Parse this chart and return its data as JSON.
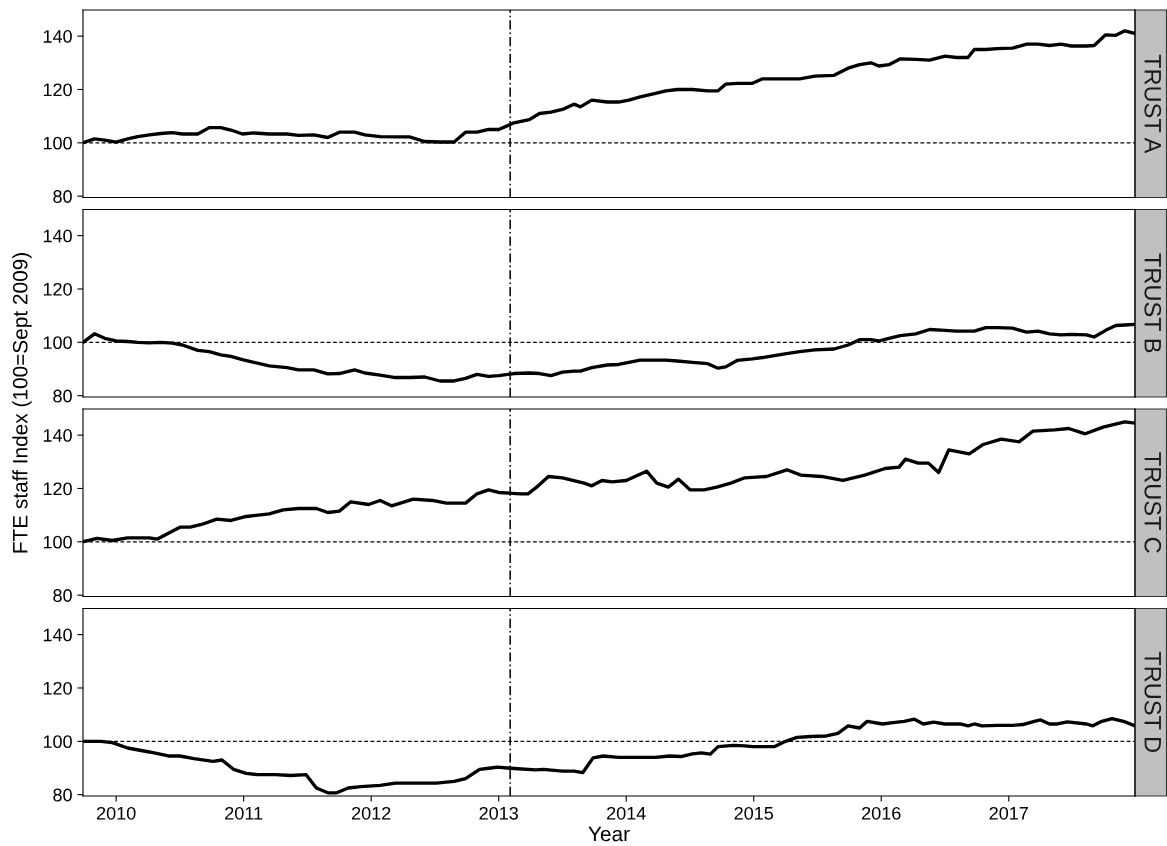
{
  "chart_data": [
    {
      "type": "line",
      "title": "TRUST A",
      "xlim": [
        2009.74,
        2017.99
      ],
      "ylim": [
        79.5,
        149.8
      ],
      "yticks": [
        80,
        100,
        120,
        140
      ],
      "xticks": [
        2010,
        2011,
        2012,
        2013,
        2014,
        2015,
        2016,
        2017
      ],
      "tick_labels": "y",
      "grid": false,
      "legend": false,
      "x": [
        2009.74,
        2009.83,
        2009.91,
        2010.0,
        2010.09,
        2010.17,
        2010.26,
        2010.35,
        2010.44,
        2010.52,
        2010.64,
        2010.73,
        2010.82,
        2010.9,
        2010.99,
        2011.08,
        2011.2,
        2011.34,
        2011.43,
        2011.55,
        2011.66,
        2011.75,
        2011.87,
        2011.95,
        2012.07,
        2012.19,
        2012.3,
        2012.42,
        2012.54,
        2012.65,
        2012.74,
        2012.83,
        2012.92,
        2013.0,
        2013.12,
        2013.24,
        2013.32,
        2013.41,
        2013.5,
        2013.59,
        2013.64,
        2013.73,
        2013.85,
        2013.94,
        2014.02,
        2014.11,
        2014.23,
        2014.31,
        2014.4,
        2014.52,
        2014.64,
        2014.72,
        2014.78,
        2014.87,
        2014.99,
        2015.07,
        2015.22,
        2015.36,
        2015.48,
        2015.63,
        2015.74,
        2015.83,
        2015.92,
        2015.98,
        2016.06,
        2016.15,
        2016.27,
        2016.38,
        2016.5,
        2016.59,
        2016.68,
        2016.73,
        2016.82,
        2016.91,
        2017.03,
        2017.14,
        2017.23,
        2017.32,
        2017.41,
        2017.49,
        2017.61,
        2017.67,
        2017.76,
        2017.84,
        2017.91,
        2017.99
      ],
      "series": [
        {
          "color": "#000000",
          "values": [
            100,
            101.5,
            101,
            100.3,
            101.5,
            102.3,
            103,
            103.5,
            103.8,
            103.3,
            103.3,
            105.7,
            105.7,
            104.8,
            103.3,
            103.7,
            103.3,
            103.3,
            102.8,
            103,
            102,
            104,
            104,
            103,
            102.3,
            102.2,
            102.2,
            100.5,
            100.3,
            100.3,
            104,
            104,
            105,
            105,
            107.5,
            108.7,
            111,
            111.5,
            112.5,
            114.5,
            113.5,
            116,
            115.3,
            115.3,
            116,
            117.2,
            118.5,
            119.5,
            120,
            120,
            119.5,
            119.5,
            122,
            122.3,
            122.3,
            124,
            124,
            124,
            125,
            125.3,
            128,
            129.3,
            130,
            128.8,
            129.3,
            131.5,
            131.3,
            131,
            132.5,
            132,
            132,
            135,
            135,
            135.3,
            135.5,
            137,
            137,
            136.5,
            137,
            136.3,
            136.3,
            136.5,
            140.5,
            140.3,
            142,
            141
          ]
        }
      ],
      "ref_lines": [
        {
          "axis": "y",
          "value": 100,
          "line_style": "dotted"
        },
        {
          "axis": "x",
          "value": 2013.09,
          "line_style": "dashdot"
        }
      ]
    },
    {
      "type": "line",
      "title": "TRUST B",
      "ylabel": "FTE staff Index (100=Sept 2009)",
      "xlim": [
        2009.74,
        2017.99
      ],
      "ylim": [
        79.5,
        149.8
      ],
      "yticks": [
        80,
        100,
        120,
        140
      ],
      "xticks": [
        2010,
        2011,
        2012,
        2013,
        2014,
        2015,
        2016,
        2017
      ],
      "tick_labels": "y",
      "grid": false,
      "legend": false,
      "x": [
        2009.74,
        2009.83,
        2009.91,
        2010.0,
        2010.09,
        2010.17,
        2010.26,
        2010.35,
        2010.44,
        2010.52,
        2010.64,
        2010.73,
        2010.82,
        2010.9,
        2010.99,
        2011.08,
        2011.2,
        2011.34,
        2011.43,
        2011.55,
        2011.66,
        2011.75,
        2011.87,
        2011.95,
        2012.07,
        2012.19,
        2012.3,
        2012.42,
        2012.54,
        2012.65,
        2012.74,
        2012.83,
        2012.92,
        2013.0,
        2013.12,
        2013.24,
        2013.32,
        2013.41,
        2013.5,
        2013.59,
        2013.64,
        2013.73,
        2013.85,
        2013.94,
        2014.02,
        2014.11,
        2014.23,
        2014.31,
        2014.4,
        2014.52,
        2014.64,
        2014.72,
        2014.78,
        2014.87,
        2014.99,
        2015.07,
        2015.22,
        2015.36,
        2015.48,
        2015.63,
        2015.74,
        2015.83,
        2015.92,
        2015.98,
        2016.06,
        2016.15,
        2016.27,
        2016.38,
        2016.5,
        2016.59,
        2016.68,
        2016.73,
        2016.82,
        2016.91,
        2017.03,
        2017.14,
        2017.23,
        2017.32,
        2017.41,
        2017.49,
        2017.61,
        2017.67,
        2017.76,
        2017.84,
        2017.91,
        2017.99
      ],
      "series": [
        {
          "color": "#000000",
          "values": [
            100,
            103.2,
            101.5,
            100.5,
            100.3,
            100,
            99.8,
            100,
            99.7,
            99,
            97,
            96.5,
            95.3,
            94.7,
            93.5,
            92.5,
            91.2,
            90.5,
            89.7,
            89.7,
            88.2,
            88.3,
            89.7,
            88.5,
            87.7,
            86.8,
            86.8,
            87,
            85.5,
            85.5,
            86.5,
            88,
            87.2,
            87.5,
            88.3,
            88.5,
            88.3,
            87.5,
            88.8,
            89.2,
            89.2,
            90.5,
            91.5,
            91.7,
            92.5,
            93.3,
            93.3,
            93.3,
            93,
            92.5,
            92,
            90.3,
            90.8,
            93.2,
            93.8,
            94.3,
            95.5,
            96.5,
            97.2,
            97.5,
            99,
            101,
            101,
            100.5,
            101.5,
            102.5,
            103.2,
            104.8,
            104.5,
            104.2,
            104.2,
            104.2,
            105.5,
            105.5,
            105.3,
            103.8,
            104.2,
            103.2,
            102.8,
            103,
            102.8,
            102,
            104.5,
            106.3,
            106.5,
            106.7
          ]
        }
      ],
      "ref_lines": [
        {
          "axis": "y",
          "value": 100,
          "line_style": "dotted"
        },
        {
          "axis": "x",
          "value": 2013.09,
          "line_style": "dashdot"
        }
      ]
    },
    {
      "type": "line",
      "title": "TRUST C",
      "xlim": [
        2009.74,
        2017.99
      ],
      "ylim": [
        79.5,
        149.8
      ],
      "yticks": [
        80,
        100,
        120,
        140
      ],
      "xticks": [
        2010,
        2011,
        2012,
        2013,
        2014,
        2015,
        2016,
        2017
      ],
      "tick_labels": "y",
      "grid": false,
      "legend": false,
      "x": [
        2009.74,
        2009.85,
        2009.97,
        2010.09,
        2010.26,
        2010.32,
        2010.44,
        2010.5,
        2010.58,
        2010.67,
        2010.79,
        2010.9,
        2011.02,
        2011.2,
        2011.31,
        2011.43,
        2011.57,
        2011.66,
        2011.75,
        2011.84,
        2011.98,
        2012.07,
        2012.16,
        2012.33,
        2012.48,
        2012.59,
        2012.74,
        2012.83,
        2012.92,
        2013.0,
        2013.17,
        2013.23,
        2013.31,
        2013.39,
        2013.5,
        2013.67,
        2013.73,
        2013.81,
        2013.89,
        2014.0,
        2014.16,
        2014.24,
        2014.33,
        2014.41,
        2014.5,
        2014.61,
        2014.71,
        2014.82,
        2014.93,
        2015.1,
        2015.26,
        2015.37,
        2015.53,
        2015.7,
        2015.87,
        2016.03,
        2016.14,
        2016.19,
        2016.29,
        2016.37,
        2016.45,
        2016.53,
        2016.69,
        2016.8,
        2016.94,
        2017.08,
        2017.19,
        2017.36,
        2017.47,
        2017.6,
        2017.74,
        2017.91,
        2017.99
      ],
      "series": [
        {
          "color": "#000000",
          "values": [
            100,
            101.3,
            100.5,
            101.5,
            101.5,
            101,
            104,
            105.5,
            105.5,
            106.5,
            108.5,
            108,
            109.5,
            110.5,
            112,
            112.5,
            112.5,
            111,
            111.5,
            115,
            114,
            115.5,
            113.5,
            116,
            115.5,
            114.5,
            114.5,
            118,
            119.5,
            118.5,
            118,
            118,
            121,
            124.5,
            124,
            122,
            121,
            123,
            122.5,
            123,
            126.5,
            122,
            120.5,
            123.5,
            119.5,
            119.5,
            120.5,
            122,
            124,
            124.5,
            127,
            125,
            124.5,
            123,
            125,
            127.5,
            128,
            131,
            129.5,
            129.5,
            126,
            134.5,
            133,
            136.5,
            138.5,
            137.5,
            141.5,
            142,
            142.5,
            140.5,
            143,
            145,
            144.5
          ]
        }
      ],
      "ref_lines": [
        {
          "axis": "y",
          "value": 100,
          "line_style": "dotted"
        },
        {
          "axis": "x",
          "value": 2013.09,
          "line_style": "dashdot"
        }
      ]
    },
    {
      "type": "line",
      "title": "TRUST D",
      "xlabel": "Year",
      "xlim": [
        2009.74,
        2017.99
      ],
      "ylim": [
        79.5,
        149.8
      ],
      "yticks": [
        80,
        100,
        120,
        140
      ],
      "xticks": [
        2010,
        2011,
        2012,
        2013,
        2014,
        2015,
        2016,
        2017
      ],
      "grid": false,
      "legend": false,
      "x": [
        2009.74,
        2009.88,
        2009.97,
        2010.09,
        2010.26,
        2010.41,
        2010.5,
        2010.61,
        2010.76,
        2010.83,
        2010.92,
        2011.02,
        2011.11,
        2011.25,
        2011.37,
        2011.49,
        2011.57,
        2011.66,
        2011.73,
        2011.82,
        2011.92,
        2012.07,
        2012.19,
        2012.51,
        2012.65,
        2012.74,
        2012.85,
        2012.94,
        2012.99,
        2013.12,
        2013.29,
        2013.35,
        2013.5,
        2013.59,
        2013.66,
        2013.74,
        2013.82,
        2013.94,
        2014.23,
        2014.34,
        2014.43,
        2014.52,
        2014.59,
        2014.66,
        2014.72,
        2014.84,
        2014.93,
        2014.99,
        2015.16,
        2015.25,
        2015.34,
        2015.45,
        2015.57,
        2015.66,
        2015.74,
        2015.83,
        2015.89,
        2016.01,
        2016.09,
        2016.18,
        2016.26,
        2016.33,
        2016.41,
        2016.5,
        2016.62,
        2016.68,
        2016.73,
        2016.79,
        2016.91,
        2017.03,
        2017.11,
        2017.2,
        2017.25,
        2017.32,
        2017.38,
        2017.46,
        2017.61,
        2017.66,
        2017.73,
        2017.81,
        2017.9,
        2017.99
      ],
      "series": [
        {
          "color": "#000000",
          "values": [
            100,
            100,
            99.5,
            97.5,
            96,
            94.5,
            94.5,
            93.5,
            92.5,
            93,
            89.5,
            88,
            87.5,
            87.5,
            87.2,
            87.5,
            82.5,
            80.7,
            80.7,
            82.5,
            83,
            83.5,
            84.3,
            84.3,
            85,
            86,
            89.5,
            90,
            90.3,
            89.8,
            89.3,
            89.5,
            88.8,
            88.8,
            88.3,
            93.8,
            94.5,
            94,
            94,
            94.5,
            94.3,
            95.3,
            95.7,
            95.2,
            98,
            98.5,
            98.3,
            98,
            98,
            100,
            101.5,
            101.8,
            102,
            103,
            105.8,
            105,
            107.5,
            106.5,
            107,
            107.5,
            108.3,
            106.5,
            107.2,
            106.5,
            106.5,
            105.8,
            106.5,
            105.8,
            106,
            106,
            106.3,
            107.5,
            108,
            106.5,
            106.5,
            107.3,
            106.5,
            105.8,
            107.5,
            108.5,
            107.5,
            105.8
          ]
        }
      ],
      "ref_lines": [
        {
          "axis": "y",
          "value": 100,
          "line_style": "dotted"
        },
        {
          "axis": "x",
          "value": 2013.09,
          "line_style": "dashdot"
        }
      ]
    }
  ]
}
